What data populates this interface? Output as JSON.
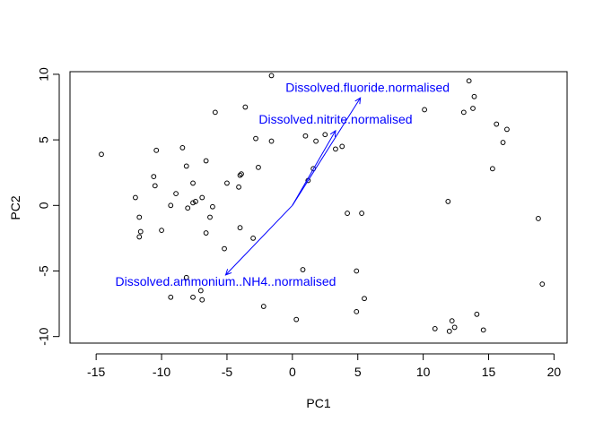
{
  "chart_data": {
    "type": "scatter",
    "title": "",
    "xlabel": "PC1",
    "ylabel": "PC2",
    "xlim": [
      -17,
      21
    ],
    "ylim": [
      -10.5,
      10.2
    ],
    "xticks": [
      -15,
      -10,
      -5,
      0,
      5,
      10,
      15,
      20
    ],
    "yticks": [
      -10,
      -5,
      0,
      5,
      10
    ],
    "grid": false,
    "legend": "none",
    "point_color": "#000000",
    "arrow_color": "#0000ff",
    "points": [
      {
        "x": -14.6,
        "y": 3.9
      },
      {
        "x": -12.0,
        "y": 0.6
      },
      {
        "x": -11.7,
        "y": -0.9
      },
      {
        "x": -11.7,
        "y": -2.4
      },
      {
        "x": -11.6,
        "y": -2.0
      },
      {
        "x": -10.6,
        "y": 2.2
      },
      {
        "x": -10.5,
        "y": 1.5
      },
      {
        "x": -10.4,
        "y": 4.2
      },
      {
        "x": -10.0,
        "y": -1.9
      },
      {
        "x": -9.3,
        "y": 0.0
      },
      {
        "x": -9.3,
        "y": -7.0
      },
      {
        "x": -8.9,
        "y": 0.9
      },
      {
        "x": -8.4,
        "y": 4.4
      },
      {
        "x": -8.1,
        "y": 3.0
      },
      {
        "x": -8.0,
        "y": -0.2
      },
      {
        "x": -8.1,
        "y": -5.5
      },
      {
        "x": -7.6,
        "y": 0.2
      },
      {
        "x": -7.6,
        "y": 1.7
      },
      {
        "x": -7.4,
        "y": 0.3
      },
      {
        "x": -7.6,
        "y": -7.0
      },
      {
        "x": -7.0,
        "y": -6.5
      },
      {
        "x": -6.9,
        "y": 0.6
      },
      {
        "x": -6.9,
        "y": -7.2
      },
      {
        "x": -6.6,
        "y": 3.4
      },
      {
        "x": -6.3,
        "y": -0.9
      },
      {
        "x": -6.6,
        "y": -2.1
      },
      {
        "x": -6.1,
        "y": -0.1
      },
      {
        "x": -5.9,
        "y": 7.1
      },
      {
        "x": -5.2,
        "y": -3.3
      },
      {
        "x": -5.0,
        "y": 1.7
      },
      {
        "x": -4.1,
        "y": 1.4
      },
      {
        "x": -4.0,
        "y": 2.3
      },
      {
        "x": -3.9,
        "y": 2.4
      },
      {
        "x": -4.0,
        "y": -1.7
      },
      {
        "x": -3.6,
        "y": 7.5
      },
      {
        "x": -3.0,
        "y": -2.5
      },
      {
        "x": -2.8,
        "y": 5.1
      },
      {
        "x": -2.6,
        "y": 2.9
      },
      {
        "x": -2.2,
        "y": -7.7
      },
      {
        "x": -1.6,
        "y": 9.9
      },
      {
        "x": -1.6,
        "y": 4.9
      },
      {
        "x": 0.3,
        "y": -8.7
      },
      {
        "x": 0.8,
        "y": -4.9
      },
      {
        "x": 1.0,
        "y": 5.3
      },
      {
        "x": 1.2,
        "y": 1.9
      },
      {
        "x": 1.6,
        "y": 2.8
      },
      {
        "x": 1.8,
        "y": 4.9
      },
      {
        "x": 2.5,
        "y": 5.4
      },
      {
        "x": 3.3,
        "y": 4.3
      },
      {
        "x": 3.8,
        "y": 4.5
      },
      {
        "x": 4.2,
        "y": -0.6
      },
      {
        "x": 4.9,
        "y": -8.1
      },
      {
        "x": 4.9,
        "y": -5.0
      },
      {
        "x": 5.3,
        "y": -0.6
      },
      {
        "x": 5.5,
        "y": -7.1
      },
      {
        "x": 10.1,
        "y": 7.3
      },
      {
        "x": 10.9,
        "y": -9.4
      },
      {
        "x": 11.9,
        "y": 0.3
      },
      {
        "x": 12.0,
        "y": -9.6
      },
      {
        "x": 12.2,
        "y": -8.8
      },
      {
        "x": 12.4,
        "y": -9.3
      },
      {
        "x": 13.1,
        "y": 7.1
      },
      {
        "x": 13.5,
        "y": 9.5
      },
      {
        "x": 13.8,
        "y": 7.4
      },
      {
        "x": 13.9,
        "y": 8.3
      },
      {
        "x": 14.1,
        "y": -8.3
      },
      {
        "x": 14.6,
        "y": -9.5
      },
      {
        "x": 15.3,
        "y": 2.8
      },
      {
        "x": 15.6,
        "y": 6.2
      },
      {
        "x": 16.1,
        "y": 4.8
      },
      {
        "x": 16.4,
        "y": 5.8
      },
      {
        "x": 18.8,
        "y": -1.0
      },
      {
        "x": 19.1,
        "y": -6.0
      }
    ],
    "arrows": [
      {
        "label": "Dissolved.fluoride.normalised",
        "x": 5.2,
        "y": 8.2
      },
      {
        "label": "Dissolved.nitrite.normalised",
        "x": 3.3,
        "y": 5.7
      },
      {
        "label": "Dissolved.ammonium..NH4..normalised",
        "x": -5.1,
        "y": -5.3
      }
    ]
  }
}
